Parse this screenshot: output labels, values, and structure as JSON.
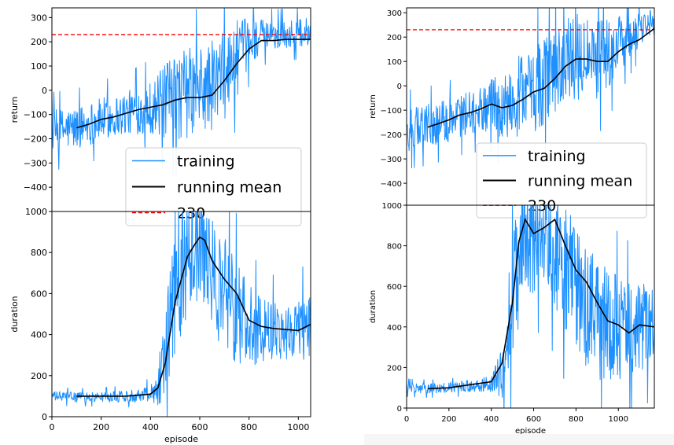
{
  "colors": {
    "training": "#1e90ff",
    "running_mean": "#000000",
    "threshold": "#ff0000",
    "axes": "#000000"
  },
  "chart_data": [
    {
      "id": "left-return",
      "type": "line",
      "xlabel": "",
      "ylabel": "return",
      "xlim": [
        0,
        1050
      ],
      "ylim": [
        -500,
        340
      ],
      "yticks": [
        300,
        200,
        100,
        0,
        -100,
        -200,
        -300,
        -400
      ],
      "hline": {
        "y": 230,
        "label": "230"
      },
      "legend": {
        "placement": "lower-right",
        "entries": [
          "training",
          "running mean",
          "230"
        ]
      },
      "series": [
        {
          "name": "training",
          "kind": "noisy",
          "envelope": {
            "x": [
              0,
              100,
              200,
              300,
              400,
              450,
              500,
              550,
              600,
              650,
              700,
              750,
              800,
              850,
              900,
              950,
              1000,
              1050
            ],
            "mid": [
              -170,
              -155,
              -120,
              -95,
              -70,
              -55,
              -30,
              -10,
              -5,
              20,
              60,
              130,
              200,
              225,
              225,
              230,
              235,
              240
            ],
            "spread": [
              90,
              90,
              90,
              90,
              110,
              150,
              180,
              190,
              190,
              190,
              180,
              160,
              100,
              70,
              60,
              60,
              60,
              60
            ]
          }
        },
        {
          "name": "running mean",
          "x": [
            100,
            150,
            200,
            250,
            300,
            350,
            400,
            450,
            500,
            550,
            600,
            650,
            700,
            750,
            800,
            850,
            900,
            950,
            1000,
            1050
          ],
          "y": [
            -155,
            -140,
            -120,
            -110,
            -95,
            -80,
            -70,
            -60,
            -40,
            -30,
            -30,
            -20,
            40,
            110,
            170,
            205,
            205,
            210,
            210,
            210
          ]
        }
      ]
    },
    {
      "id": "left-duration",
      "type": "line",
      "xlabel": "episode",
      "ylabel": "duration",
      "xlim": [
        0,
        1050
      ],
      "ylim": [
        0,
        1000
      ],
      "xticks": [
        0,
        200,
        400,
        600,
        800,
        1000
      ],
      "yticks": [
        0,
        200,
        400,
        600,
        800,
        1000
      ],
      "series": [
        {
          "name": "training",
          "kind": "noisy",
          "envelope": {
            "x": [
              0,
              100,
              200,
              300,
              400,
              430,
              460,
              500,
              550,
              600,
              650,
              700,
              750,
              800,
              850,
              900,
              950,
              1000,
              1050
            ],
            "mid": [
              100,
              95,
              95,
              100,
              115,
              160,
              320,
              600,
              800,
              820,
              700,
              600,
              520,
              440,
              430,
              420,
              420,
              430,
              450
            ],
            "spread": [
              25,
              25,
              25,
              30,
              40,
              110,
              230,
              320,
              300,
              260,
              280,
              280,
              260,
              200,
              170,
              150,
              150,
              160,
              170
            ]
          }
        },
        {
          "name": "running mean",
          "x": [
            100,
            200,
            300,
            400,
            430,
            460,
            500,
            550,
            580,
            600,
            620,
            650,
            700,
            750,
            800,
            850,
            900,
            950,
            1000,
            1050
          ],
          "y": [
            100,
            100,
            100,
            110,
            140,
            260,
            560,
            780,
            840,
            875,
            860,
            760,
            670,
            600,
            470,
            440,
            430,
            425,
            420,
            450
          ]
        }
      ]
    },
    {
      "id": "right-return",
      "type": "line",
      "xlabel": "",
      "ylabel": "return",
      "xlim": [
        0,
        1170
      ],
      "ylim": [
        -490,
        320
      ],
      "yticks": [
        300,
        200,
        100,
        0,
        -100,
        -200,
        -300,
        -400
      ],
      "hline": {
        "y": 230,
        "label": "230"
      },
      "legend": {
        "placement": "lower-right",
        "entries": [
          "training",
          "running mean",
          "230"
        ]
      },
      "series": [
        {
          "name": "training",
          "kind": "noisy",
          "envelope": {
            "x": [
              0,
              100,
              200,
              300,
              400,
              450,
              500,
              550,
              600,
              650,
              700,
              750,
              800,
              850,
              900,
              950,
              1000,
              1050,
              1100,
              1170
            ],
            "mid": [
              -180,
              -165,
              -140,
              -110,
              -80,
              -90,
              -60,
              -40,
              -20,
              20,
              60,
              110,
              120,
              110,
              100,
              130,
              170,
              200,
              230,
              260
            ],
            "spread": [
              90,
              90,
              90,
              90,
              110,
              140,
              160,
              180,
              180,
              180,
              180,
              180,
              180,
              180,
              170,
              150,
              120,
              90,
              70,
              60
            ]
          }
        },
        {
          "name": "running mean",
          "x": [
            100,
            150,
            200,
            250,
            300,
            350,
            400,
            450,
            500,
            550,
            600,
            650,
            700,
            750,
            800,
            850,
            900,
            950,
            1000,
            1050,
            1100,
            1170
          ],
          "y": [
            -170,
            -155,
            -140,
            -120,
            -110,
            -95,
            -75,
            -90,
            -80,
            -55,
            -25,
            -10,
            30,
            80,
            110,
            110,
            100,
            100,
            140,
            170,
            190,
            235
          ]
        }
      ]
    },
    {
      "id": "right-duration",
      "type": "line",
      "xlabel": "episode",
      "ylabel": "duration",
      "xlim": [
        0,
        1170
      ],
      "ylim": [
        0,
        1000
      ],
      "xticks": [
        0,
        200,
        400,
        600,
        800,
        1000
      ],
      "yticks": [
        0,
        200,
        400,
        600,
        800,
        1000
      ],
      "series": [
        {
          "name": "training",
          "kind": "noisy",
          "envelope": {
            "x": [
              0,
              100,
              200,
              300,
              400,
              450,
              500,
              550,
              600,
              650,
              700,
              750,
              800,
              850,
              900,
              950,
              1000,
              1050,
              1100,
              1170
            ],
            "mid": [
              100,
              95,
              100,
              110,
              120,
              170,
              560,
              820,
              830,
              850,
              790,
              700,
              620,
              520,
              420,
              410,
              400,
              390,
              400,
              400
            ],
            "spread": [
              25,
              25,
              25,
              30,
              40,
              140,
              320,
              300,
              260,
              260,
              300,
              320,
              320,
              320,
              300,
              280,
              260,
              240,
              220,
              200
            ]
          }
        },
        {
          "name": "running mean",
          "x": [
            100,
            200,
            300,
            400,
            450,
            500,
            530,
            560,
            600,
            650,
            700,
            750,
            800,
            850,
            900,
            950,
            1000,
            1050,
            1100,
            1170
          ],
          "y": [
            95,
            100,
            115,
            130,
            220,
            520,
            820,
            930,
            860,
            890,
            930,
            800,
            680,
            620,
            520,
            430,
            410,
            370,
            410,
            400
          ]
        }
      ]
    }
  ]
}
